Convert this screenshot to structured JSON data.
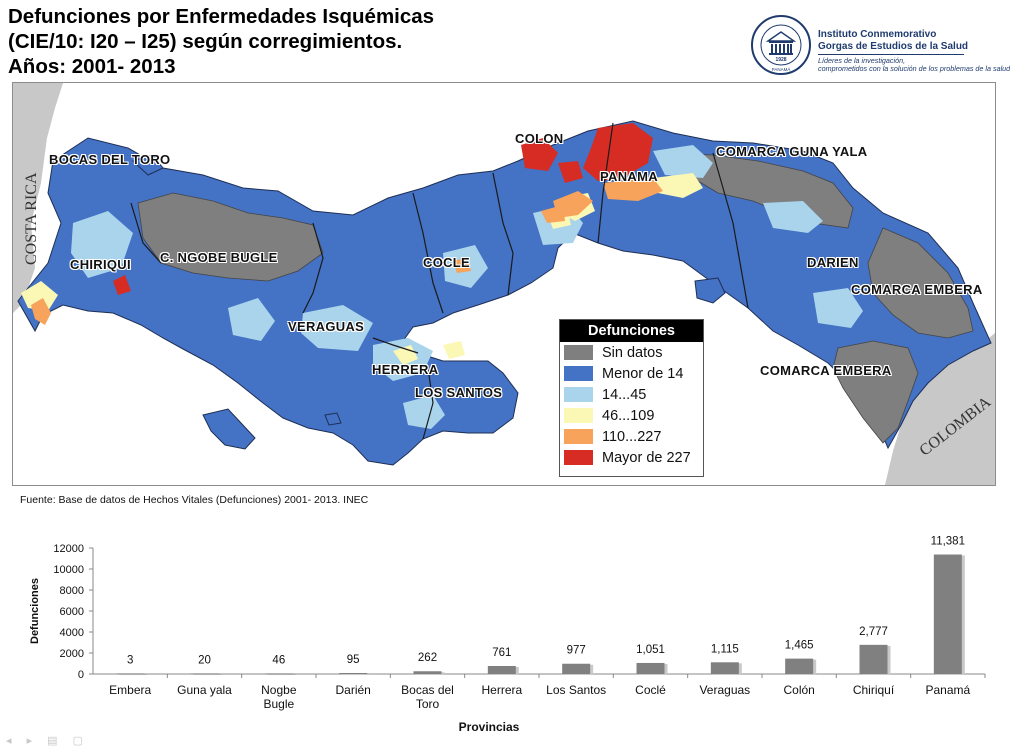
{
  "title": {
    "line1": "Defunciones por Enfermedades Isquémicas",
    "line2": "(CIE/10: I20 – I25) según corregimientos.",
    "line3": "Años: 2001- 2013"
  },
  "logo": {
    "org_line1": "Instituto Conmemorativo",
    "org_line2": "Gorgas de Estudios de la Salud",
    "tagline1": "Líderes de la investigación,",
    "tagline2": "comprometidos con la solución de los problemas de la salud",
    "seal_year": "1928",
    "seal_country": "PANAMÁ"
  },
  "map": {
    "province_labels": {
      "bocas_del_toro": "BOCAS DEL TORO",
      "chiriqui": "CHIRIQUI",
      "ngobe_bugle": "C. NGOBE BUGLE",
      "veraguas": "VERAGUAS",
      "herrera": "HERRERA",
      "los_santos": "LOS SANTOS",
      "cocle": "COCLE",
      "colon": "COLON",
      "panama": "PANAMA",
      "guna_yala": "COMARCA GUNA YALA",
      "darien": "DARIEN",
      "embera_1": "COMARCA EMBERA",
      "embera_2": "COMARCA EMBERA"
    },
    "country_labels": {
      "costa_rica": "COSTA RICA",
      "colombia": "COLOMBIA"
    },
    "colors": {
      "sin_datos": "#7f7f7f",
      "menor_14": "#4472c4",
      "r14_45": "#a9d4ec",
      "r46_109": "#fbf7b4",
      "r110_227": "#f8a35b",
      "mayor_227": "#d62c24",
      "neighbor": "#c8c8c8"
    }
  },
  "legend": {
    "title": "Defunciones",
    "items": [
      {
        "label": "Sin datos",
        "color": "#7f7f7f"
      },
      {
        "label": "Menor de 14",
        "color": "#4472c4"
      },
      {
        "label": "14...45",
        "color": "#a9d4ec"
      },
      {
        "label": "46...109",
        "color": "#fbf7b4"
      },
      {
        "label": "110...227",
        "color": "#f8a35b"
      },
      {
        "label": "Mayor de 227",
        "color": "#d62c24"
      }
    ]
  },
  "source": "Fuente: Base de datos de Hechos Vitales (Defunciones) 2001- 2013. INEC",
  "chart_data": {
    "type": "bar",
    "categories": [
      "Embera",
      "Guna yala",
      "Nogbe Bugle",
      "Darién",
      "Bocas del Toro",
      "Herrera",
      "Los Santos",
      "Coclé",
      "Veraguas",
      "Colón",
      "Chiriquí",
      "Panamá"
    ],
    "category_lines": [
      [
        "Embera"
      ],
      [
        "Guna yala"
      ],
      [
        "Nogbe",
        "Bugle"
      ],
      [
        "Darién"
      ],
      [
        "Bocas del",
        "Toro"
      ],
      [
        "Herrera"
      ],
      [
        "Los Santos"
      ],
      [
        "Coclé"
      ],
      [
        "Veraguas"
      ],
      [
        "Colón"
      ],
      [
        "Chiriquí"
      ],
      [
        "Panamá"
      ]
    ],
    "values": [
      3,
      20,
      46,
      95,
      262,
      761,
      977,
      1051,
      1115,
      1465,
      2777,
      11381
    ],
    "data_labels": [
      "3",
      "20",
      "46",
      "95",
      "262",
      "761",
      "977",
      "1,051",
      "1,115",
      "1,465",
      "2,777",
      "11,381"
    ],
    "ylim": [
      0,
      12000
    ],
    "yticks": [
      0,
      2000,
      4000,
      6000,
      8000,
      10000,
      12000
    ],
    "ylabel": "Defunciones",
    "xlabel": "Provincias",
    "bar_color": "#808080",
    "grid": false,
    "legend": "none"
  }
}
